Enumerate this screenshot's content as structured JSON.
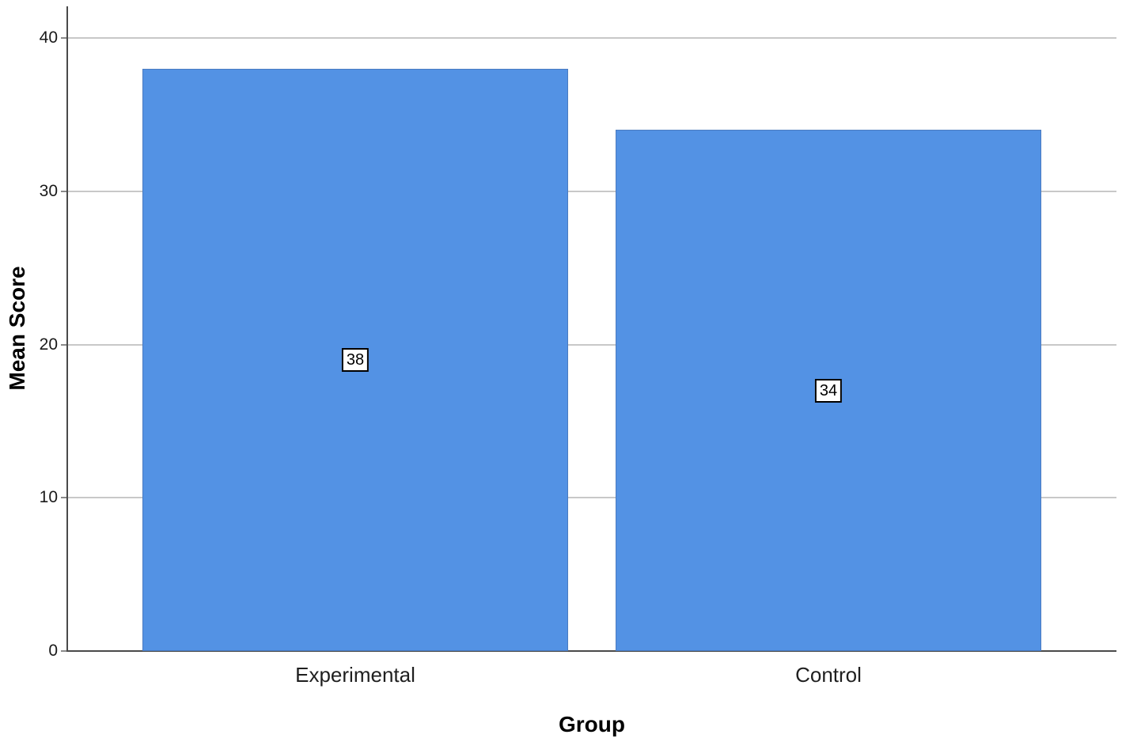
{
  "chart_data": {
    "type": "bar",
    "title": "",
    "xlabel": "Group",
    "ylabel": "Mean Score",
    "categories": [
      "Experimental",
      "Control"
    ],
    "values": [
      38,
      34
    ],
    "bar_labels": [
      "38",
      "34"
    ],
    "yticks": [
      0,
      10,
      20,
      30,
      40
    ],
    "ylim": [
      0,
      40
    ],
    "grid": "horizontal",
    "legend": "none",
    "colors": {
      "bar_fill": "#5392E4",
      "bar_border": "#4B7BC0",
      "axis_line": "#4A4A4A",
      "gridline": "#C8C8C8",
      "tick_mark": "#8A8A8A",
      "value_label_bg": "#FFFFFF",
      "value_label_border": "#000000"
    }
  }
}
